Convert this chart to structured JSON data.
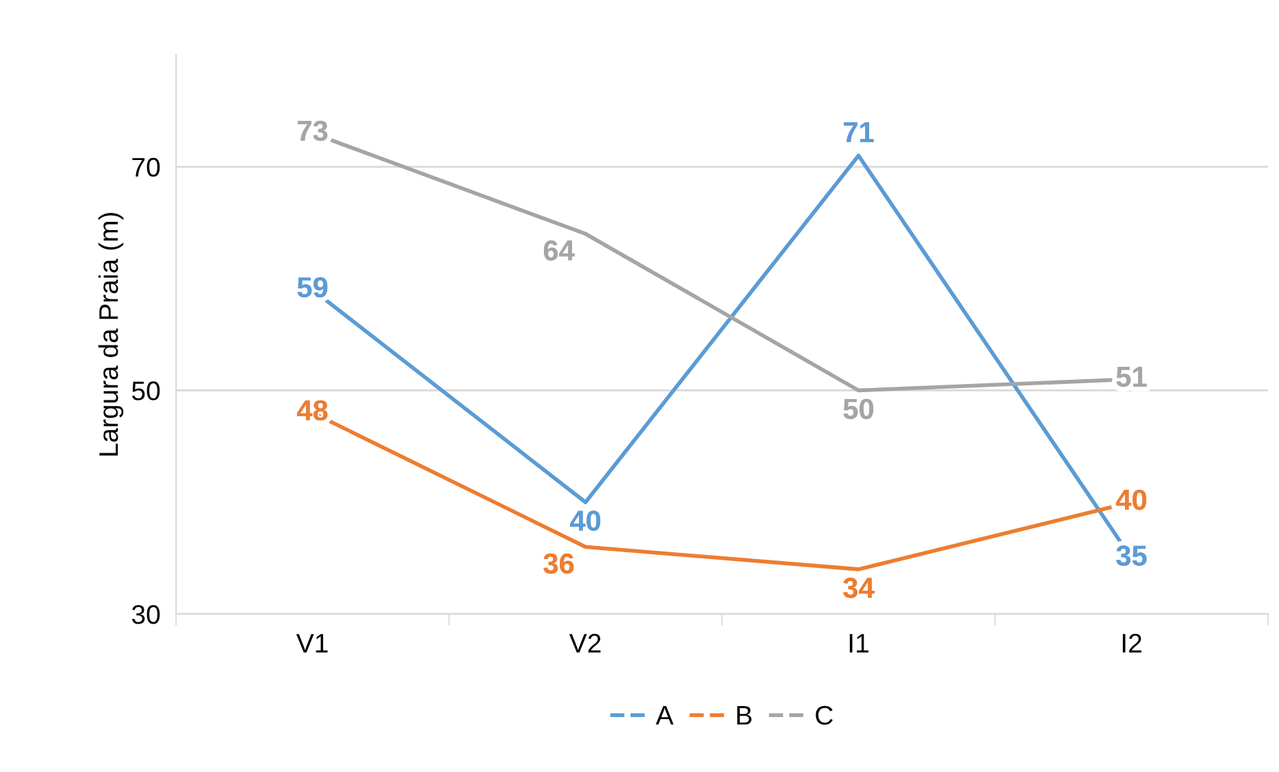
{
  "chart_data": {
    "type": "line",
    "ylabel": "Largura da Praia (m)",
    "categories": [
      "V1",
      "V2",
      "I1",
      "I2"
    ],
    "series": [
      {
        "name": "A",
        "color": "#5b9bd5",
        "values": [
          59,
          40,
          71,
          35
        ]
      },
      {
        "name": "B",
        "color": "#ed7d31",
        "values": [
          48,
          36,
          34,
          40
        ]
      },
      {
        "name": "C",
        "color": "#a5a5a5",
        "values": [
          73,
          64,
          50,
          51
        ]
      }
    ],
    "ylim": [
      30,
      80
    ],
    "yticks": [
      30,
      50,
      70
    ],
    "grid": "y",
    "legend": "bottom",
    "data_labels": true,
    "marker": "none",
    "line_style": "solid"
  }
}
